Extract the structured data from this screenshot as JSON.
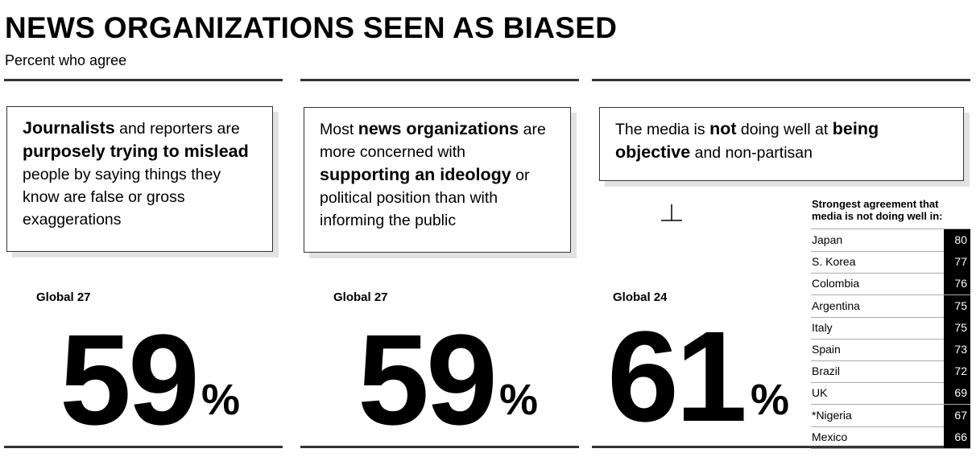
{
  "header": {
    "title": "NEWS ORGANIZATIONS SEEN AS BIASED",
    "subtitle": "Percent who agree"
  },
  "panels": [
    {
      "statement": [
        {
          "text": "Journalists",
          "bold": true
        },
        {
          "text": " and reporters are ",
          "bold": false
        },
        {
          "text": "purposely trying to mislead",
          "bold": true
        },
        {
          "text": " people by saying things they know are false or gross exaggerations",
          "bold": false
        }
      ],
      "global": "Global 27",
      "value": "59",
      "unit": "%"
    },
    {
      "statement": [
        {
          "text": "Most ",
          "bold": false
        },
        {
          "text": "news organizations",
          "bold": true
        },
        {
          "text": " are more concerned with ",
          "bold": false
        },
        {
          "text": "supporting an ideology",
          "bold": true
        },
        {
          "text": " or political position than with informing the public",
          "bold": false
        }
      ],
      "global": "Global 27",
      "value": "59",
      "unit": "%"
    },
    {
      "statement": [
        {
          "text": "The media is ",
          "bold": false
        },
        {
          "text": "not",
          "bold": true
        },
        {
          "text": " doing well at ",
          "bold": false
        },
        {
          "text": "being objective",
          "bold": true
        },
        {
          "text": " and non-partisan",
          "bold": false
        }
      ],
      "global": "Global 24",
      "value": "61",
      "unit": "%"
    }
  ],
  "table": {
    "heading": "Strongest agreement that media is not doing well in:",
    "rows": [
      [
        "Japan",
        "80"
      ],
      [
        "S. Korea",
        "77"
      ],
      [
        "Colombia",
        "76"
      ],
      [
        "Argentina",
        "75"
      ],
      [
        "Italy",
        "75"
      ],
      [
        "Spain",
        "73"
      ],
      [
        "Brazil",
        "72"
      ],
      [
        "UK",
        "69"
      ],
      [
        "*Nigeria",
        "67"
      ],
      [
        "Mexico",
        "66"
      ]
    ]
  }
}
